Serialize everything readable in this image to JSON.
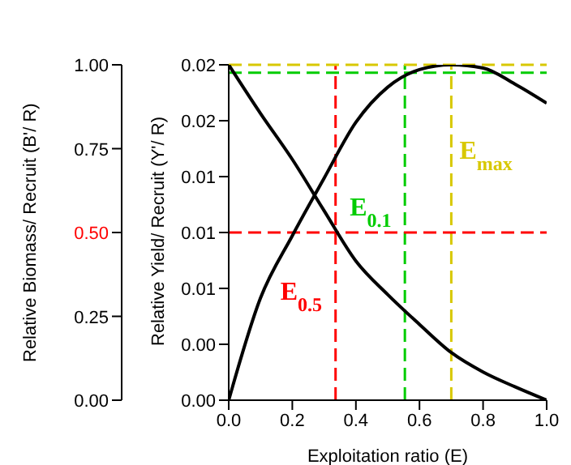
{
  "chart_data": {
    "type": "line",
    "xlabel": "Exploitation ratio (E)",
    "ylabel": "Relative Biomass/ Recruit (B'/ R)",
    "y2label": "Relative Yield/ Recruit (Y'/ R)",
    "x": [
      0,
      0.1,
      0.2,
      0.3,
      0.4,
      0.5,
      0.6,
      0.7,
      0.8,
      0.9,
      1.0
    ],
    "series": [
      {
        "color": "#000000",
        "values": [
          1.0,
          0.855,
          0.718,
          0.565,
          0.415,
          0.315,
          0.226,
          0.142,
          0.084,
          0.04,
          0.0
        ]
      },
      {
        "color": "#000000",
        "axis": "y2",
        "values": [
          0,
          0.0064,
          0.0103,
          0.0139,
          0.0174,
          0.0196,
          0.0207,
          0.021,
          0.0208,
          0.0198,
          0.0186
        ]
      }
    ],
    "xlim": [
      0,
      1
    ],
    "xticks": [
      {
        "value": 0,
        "label": "0.0"
      },
      {
        "value": 0.2,
        "label": "0.2"
      },
      {
        "value": 0.4,
        "label": "0.4"
      },
      {
        "value": 0.6,
        "label": "0.6"
      },
      {
        "value": 0.8,
        "label": "0.8"
      },
      {
        "value": 1,
        "label": "1.0"
      }
    ],
    "ylim": [
      0,
      1
    ],
    "yticks": [
      {
        "value": 0,
        "label": "0.00"
      },
      {
        "value": 0.25,
        "label": "0.25"
      },
      {
        "value": 0.5,
        "label": "0.50"
      },
      {
        "value": 0.75,
        "label": "0.75"
      },
      {
        "value": 1,
        "label": "1.00"
      }
    ],
    "y2lim": [
      0,
      0.021
    ],
    "y2ticks": [
      {
        "value": 0,
        "label": "0.00"
      },
      {
        "value": 0.0035,
        "label": "0.00"
      },
      {
        "value": 0.007,
        "label": "0.01"
      },
      {
        "value": 0.0105,
        "label": "0.01"
      },
      {
        "value": 0.014,
        "label": "0.01"
      },
      {
        "value": 0.0175,
        "label": "0.02"
      },
      {
        "value": 0.021,
        "label": "0.02"
      }
    ],
    "ref_lines": [
      {
        "axis": "x",
        "value": 0.336,
        "label": "E$_{0.5}$",
        "color": "#ff0000",
        "line_style": "dashed"
      },
      {
        "axis": "x",
        "value": 0.554,
        "label": "E$_{0.1}$",
        "color": "#00cc00",
        "line_style": "dashed"
      },
      {
        "axis": "x",
        "value": 0.7,
        "label": "E$_{max}$",
        "color": "#d8c800",
        "line_style": "dashed"
      },
      {
        "axis": "y",
        "value": 0.5,
        "color": "#ff0000",
        "line_style": "dashed"
      },
      {
        "axis": "y2",
        "value": 0.0205,
        "color": "#00cc00",
        "line_style": "dashed"
      },
      {
        "axis": "y2",
        "value": 0.021,
        "color": "#d8c800",
        "line_style": "dashed"
      }
    ],
    "grid": false,
    "legend": false,
    "marker": "none",
    "line_style": "solid"
  }
}
